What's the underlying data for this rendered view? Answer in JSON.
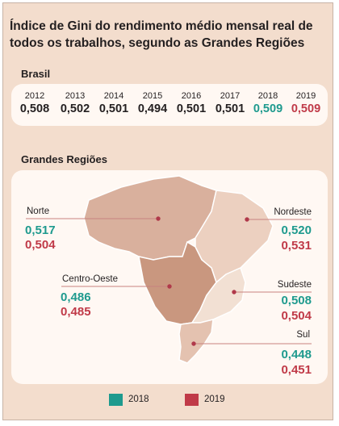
{
  "title": "Índice de Gini do rendimento médio mensal real de todos os trabalhos, segundo as Grandes Regiões",
  "colors": {
    "y2018": "#1e9a8e",
    "y2019": "#c03a48",
    "line": "#c8827f",
    "dot": "#b0394a"
  },
  "chart_data": [
    {
      "type": "table",
      "title": "Brasil",
      "years": [
        "2012",
        "2013",
        "2014",
        "2015",
        "2016",
        "2017",
        "2018",
        "2019"
      ],
      "values": [
        "0,508",
        "0,502",
        "0,501",
        "0,494",
        "0,501",
        "0,501",
        "0,509",
        "0,509"
      ]
    },
    {
      "type": "map",
      "title": "Grandes Regiões",
      "series_names": [
        "2018",
        "2019"
      ],
      "regions": [
        {
          "name": "Norte",
          "v2018": "0,517",
          "v2019": "0,504"
        },
        {
          "name": "Nordeste",
          "v2018": "0,520",
          "v2019": "0,531"
        },
        {
          "name": "Centro-Oeste",
          "v2018": "0,486",
          "v2019": "0,485"
        },
        {
          "name": "Sudeste",
          "v2018": "0,508",
          "v2019": "0,504"
        },
        {
          "name": "Sul",
          "v2018": "0,448",
          "v2019": "0,451"
        }
      ]
    }
  ]
}
